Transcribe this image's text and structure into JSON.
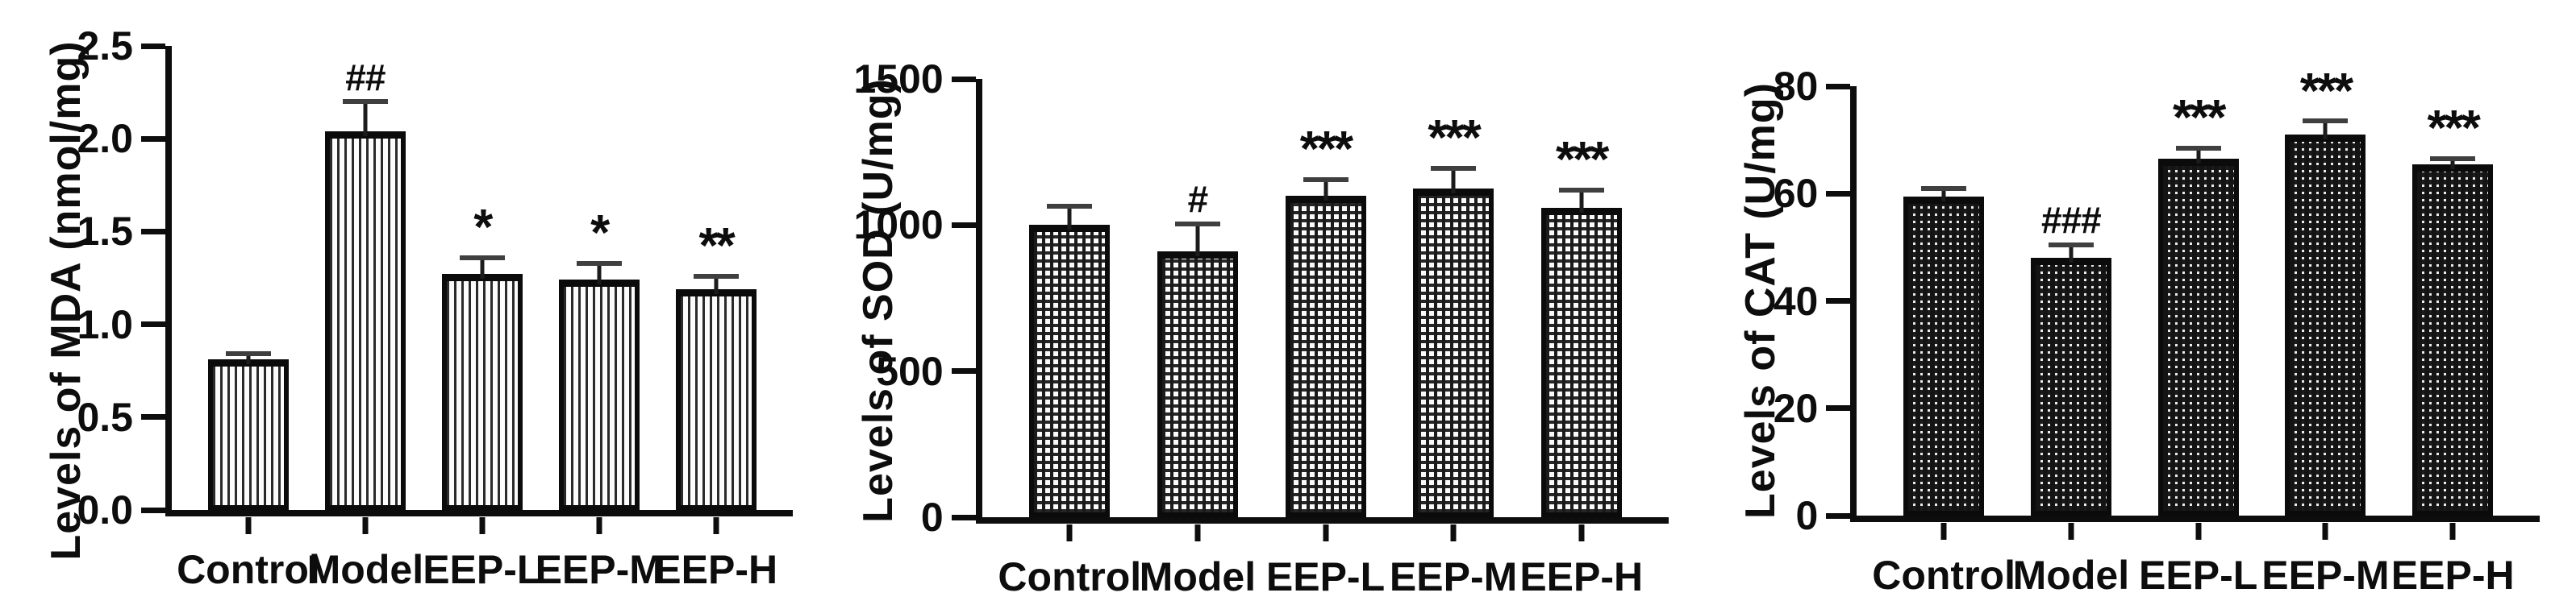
{
  "figure": {
    "background": "#ffffff",
    "ink_color": "#0d0d0d",
    "error_cap_color": "#3f3f3f"
  },
  "chart_data": [
    {
      "type": "bar",
      "name": "mda",
      "ylabel": "Levels of MDA (nmol/mg)",
      "xlabel": "",
      "categories": [
        "Control",
        "Model",
        "EEP-L",
        "EEP-M",
        "EEP-H"
      ],
      "values": [
        0.81,
        2.04,
        1.27,
        1.24,
        1.19
      ],
      "errors": [
        0.03,
        0.16,
        0.09,
        0.09,
        0.07
      ],
      "significance": [
        "",
        "##",
        "*",
        "*",
        "**"
      ],
      "ylim": [
        0,
        2.5
      ],
      "yticks": [
        0,
        0.5,
        1.0,
        1.5,
        2.0,
        2.5
      ],
      "ytick_labels": [
        "0.0",
        "0.5",
        "1.0",
        "1.5",
        "2.0",
        "2.5"
      ],
      "bar_pattern": "vertical-stripes",
      "grid": false,
      "legend": null
    },
    {
      "type": "bar",
      "name": "sod",
      "ylabel": "Levels of SOD (U/mg)",
      "xlabel": "",
      "categories": [
        "Control",
        "Model",
        "EEP-L",
        "EEP-M",
        "EEP-H"
      ],
      "values": [
        1000,
        910,
        1100,
        1125,
        1060
      ],
      "errors": [
        65,
        95,
        55,
        70,
        60
      ],
      "significance": [
        "",
        "#",
        "***",
        "***",
        "***"
      ],
      "ylim": [
        0,
        1500
      ],
      "yticks": [
        0,
        500,
        1000,
        1500
      ],
      "ytick_labels": [
        "0",
        "500",
        "1000",
        "1500"
      ],
      "bar_pattern": "checker-grid",
      "grid": false,
      "legend": null
    },
    {
      "type": "bar",
      "name": "cat",
      "ylabel": "Levels of CAT (U/mg)",
      "xlabel": "",
      "categories": [
        "Control",
        "Model",
        "EEP-L",
        "EEP-M",
        "EEP-H"
      ],
      "values": [
        59.5,
        48,
        66.5,
        71,
        65.5
      ],
      "errors": [
        1.5,
        2.5,
        2.0,
        2.5,
        1.0
      ],
      "significance": [
        "",
        "###",
        "***",
        "***",
        "***"
      ],
      "ylim": [
        0,
        80
      ],
      "yticks": [
        0,
        20,
        40,
        60,
        80
      ],
      "ytick_labels": [
        "0",
        "20",
        "40",
        "60",
        "80"
      ],
      "bar_pattern": "dense-checker",
      "grid": false,
      "legend": null
    }
  ]
}
